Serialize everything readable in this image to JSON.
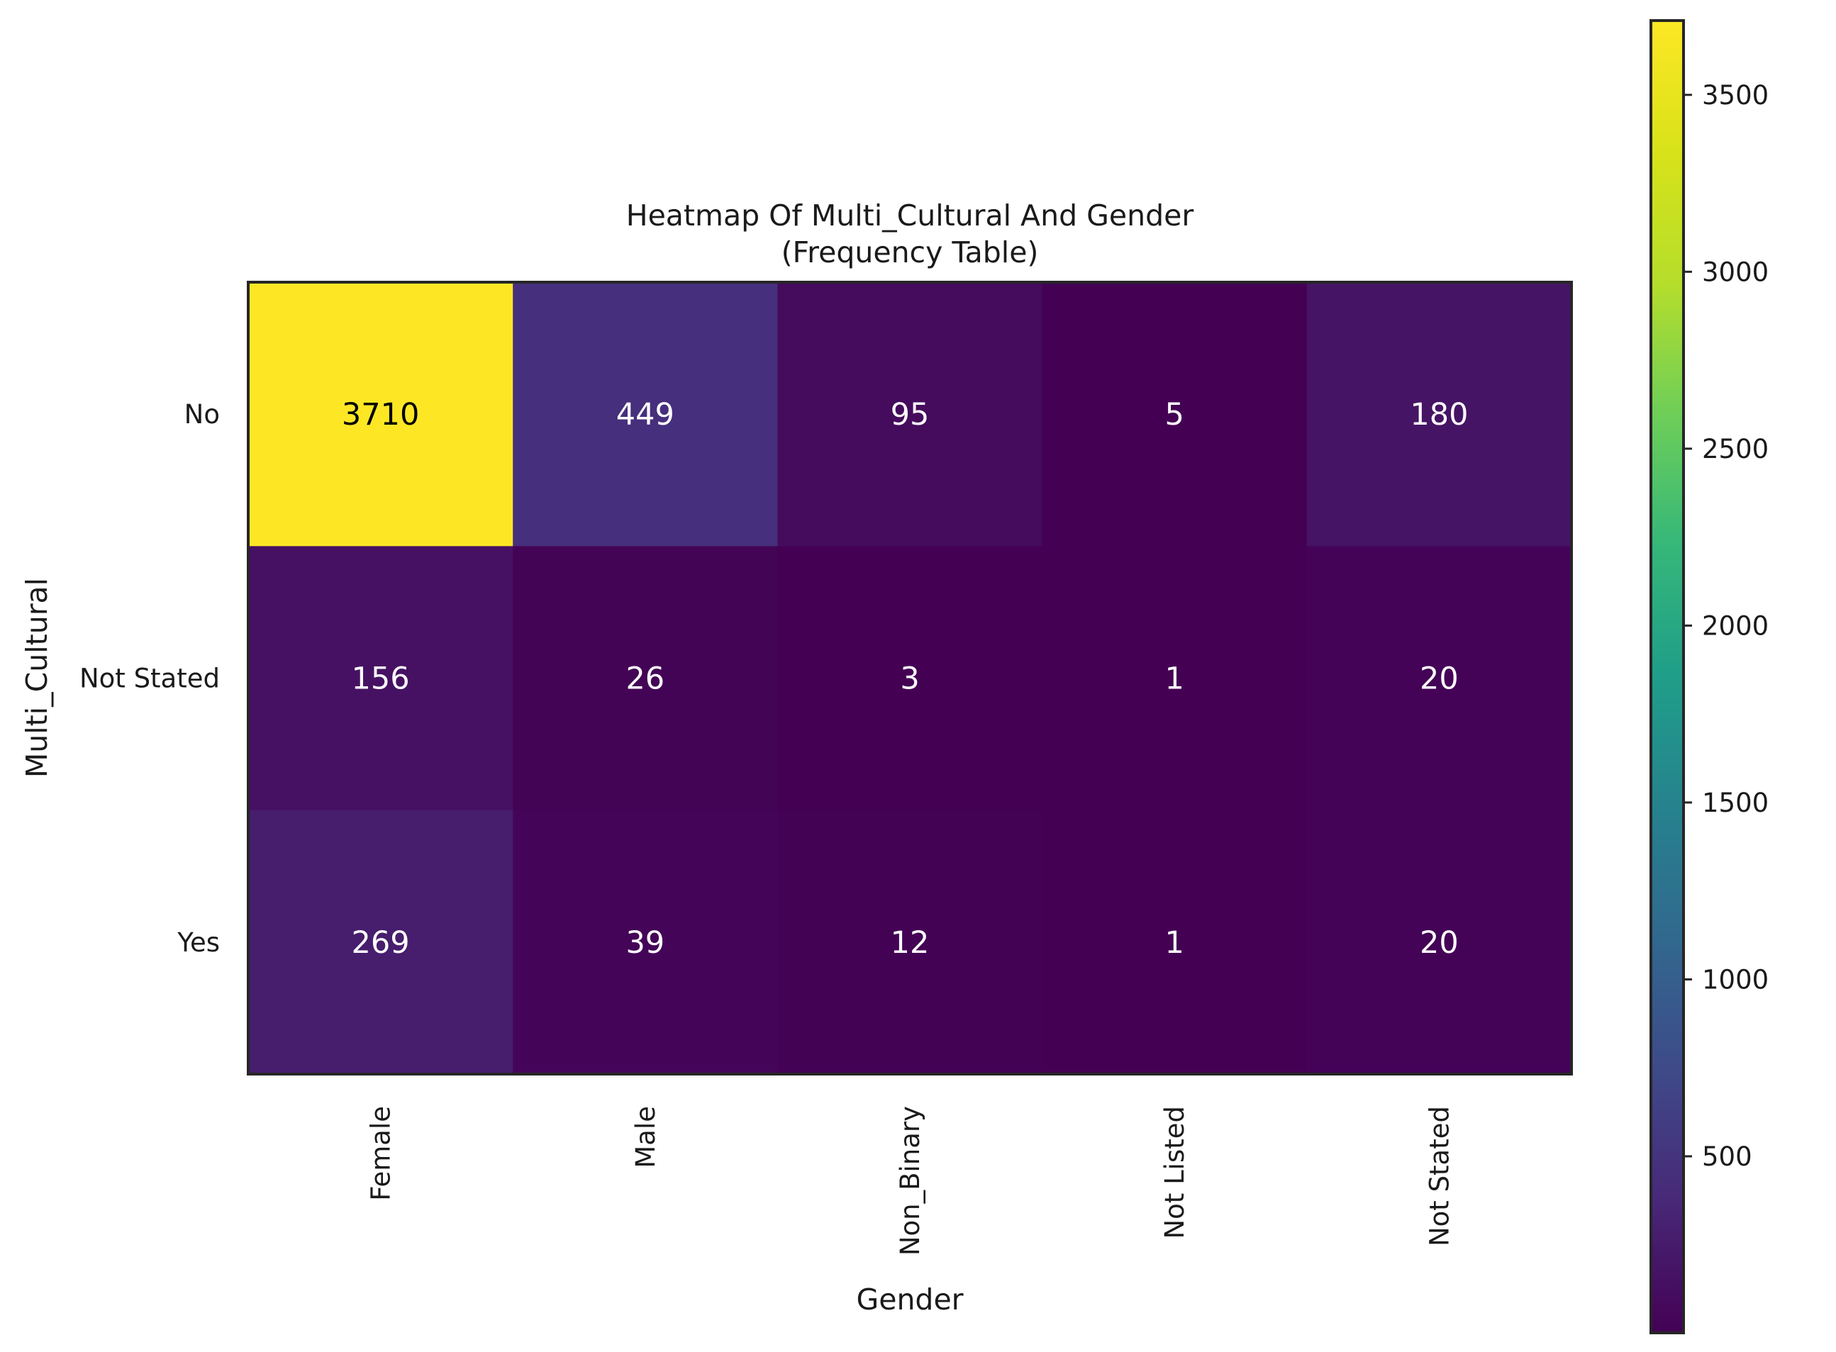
{
  "chart_data": {
    "type": "heatmap",
    "title": "Heatmap Of Multi_Cultural And Gender",
    "subtitle": "(Frequency Table)",
    "xlabel": "Gender",
    "ylabel": "Multi_Cultural",
    "x_categories": [
      "Female",
      "Male",
      "Non_Binary",
      "Not Listed",
      "Not Stated"
    ],
    "y_categories": [
      "No",
      "Not Stated",
      "Yes"
    ],
    "values": [
      [
        3710,
        449,
        95,
        5,
        180
      ],
      [
        156,
        26,
        3,
        1,
        20
      ],
      [
        269,
        39,
        12,
        1,
        20
      ]
    ],
    "colormap": "viridis",
    "colorbar": {
      "range": [
        1,
        3710
      ],
      "ticks": [
        500,
        1000,
        1500,
        2000,
        2500,
        3000,
        3500
      ]
    },
    "annotations": true,
    "grid": false,
    "colors": {
      "annotation_light": "#ffffff",
      "annotation_dark": "#000000",
      "frame": "#262626"
    }
  }
}
